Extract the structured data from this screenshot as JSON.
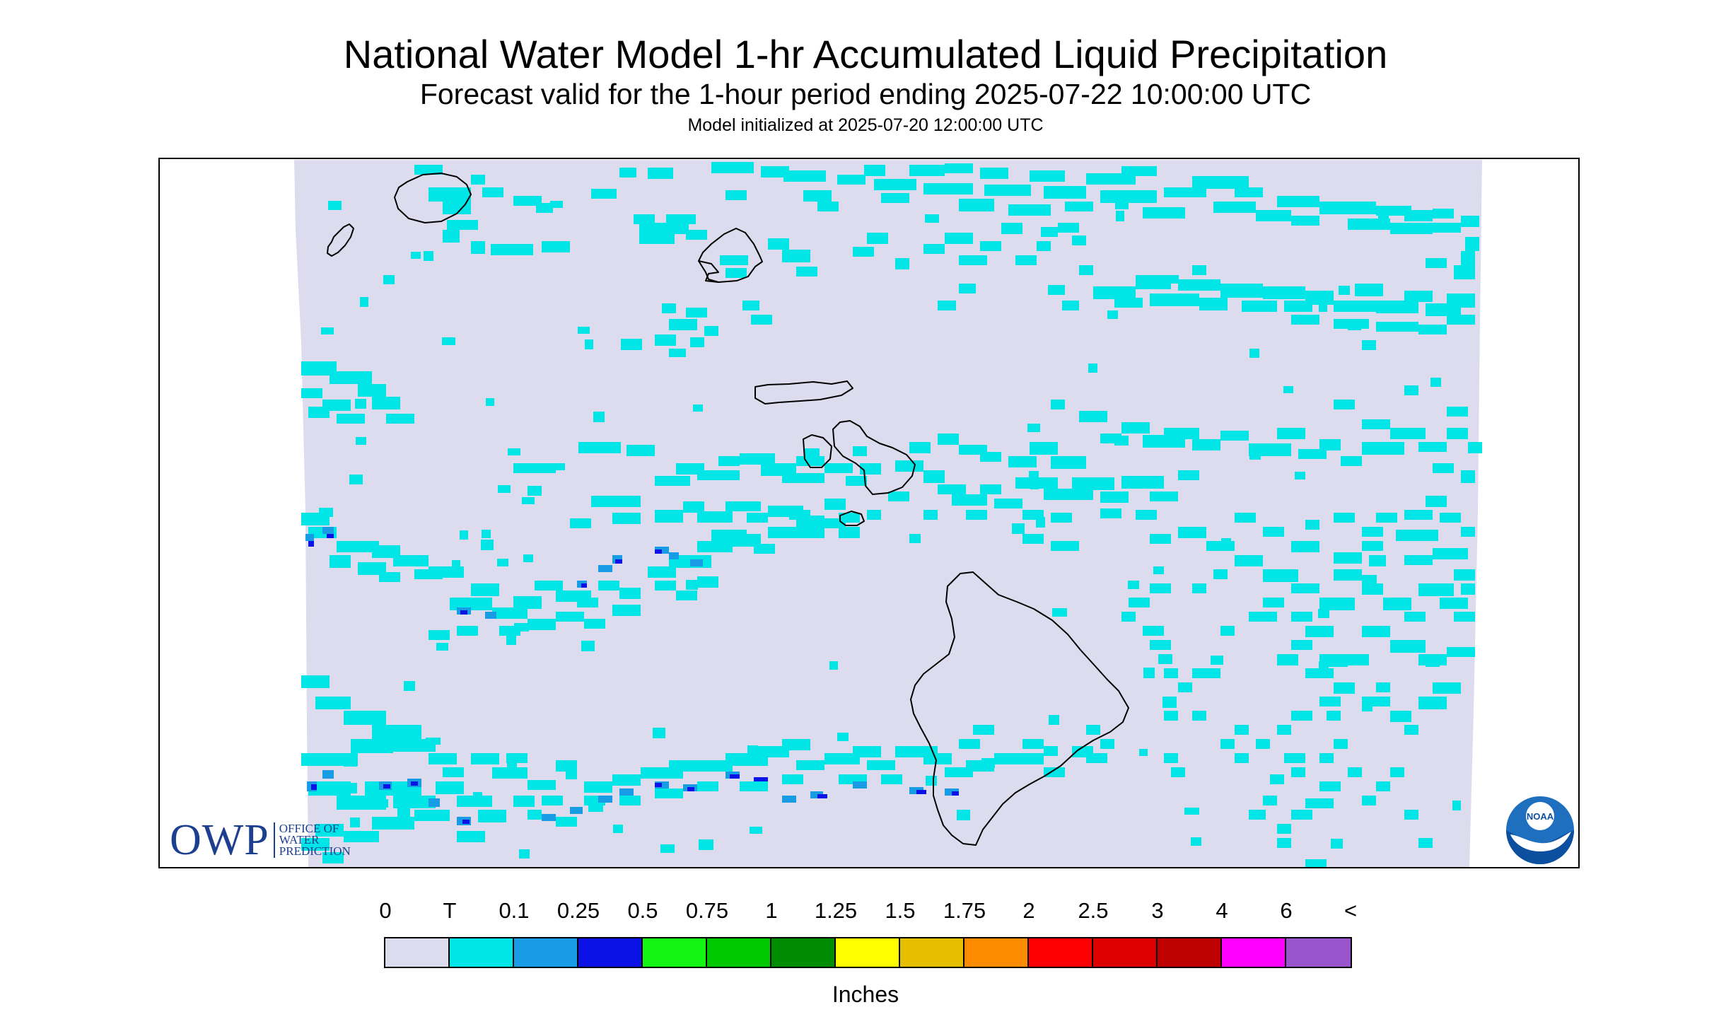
{
  "header": {
    "title": "National Water Model 1-hr Accumulated Liquid Precipitation",
    "subtitle": "Forecast valid for the 1-hour period ending 2025-07-22 10:00:00 UTC",
    "init_line": "Model initialized at 2025-07-20 12:00:00 UTC"
  },
  "map": {
    "region_islands": [
      "Niihau",
      "Kauai",
      "Oahu",
      "Molokai",
      "Lanai",
      "Maui",
      "Kahoolawe",
      "Hawaii"
    ],
    "precip_categories_present": [
      "0",
      "T",
      "0.1",
      "0.25"
    ]
  },
  "logos": {
    "owp_mark": "OWP",
    "owp_name_lines": [
      "OFFICE OF",
      "WATER",
      "PREDICTION"
    ],
    "noaa_mark": "NOAA"
  },
  "legend": {
    "ticks": [
      "0",
      "T",
      "0.1",
      "0.25",
      "0.5",
      "0.75",
      "1",
      "1.25",
      "1.5",
      "1.75",
      "2",
      "2.5",
      "3",
      "4",
      "6",
      "<"
    ],
    "colors": [
      "#dcdcee",
      "#00e6e6",
      "#199ce6",
      "#0b12e6",
      "#13f513",
      "#00c800",
      "#008c00",
      "#ffff00",
      "#e6be00",
      "#ff8c00",
      "#ff0000",
      "#dc0000",
      "#be0000",
      "#ff00ff",
      "#9955cc"
    ],
    "units": "Inches"
  }
}
